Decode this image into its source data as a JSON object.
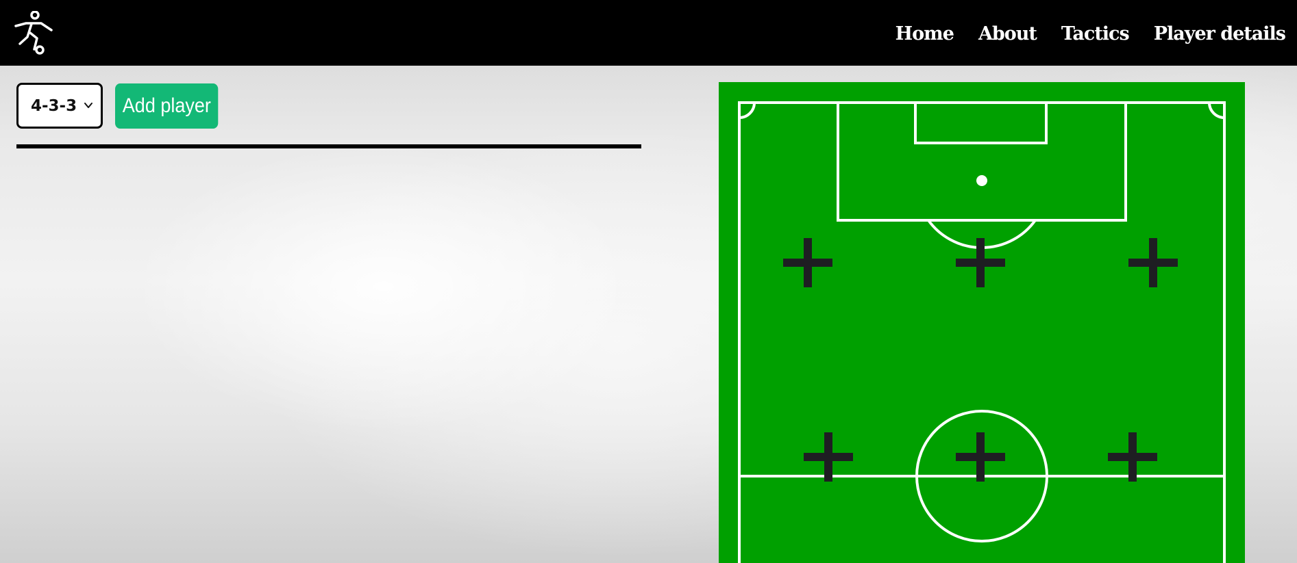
{
  "navbar": {
    "logo_icon": "football-player-kicking-icon",
    "links": [
      "Home",
      "About",
      "Tactics",
      "Player details"
    ]
  },
  "controls": {
    "formation_selected": "4-3-3",
    "add_player_label": "Add player"
  },
  "pitch": {
    "field_color": "#00a000",
    "line_color": "#ffffff",
    "position_marker_icon": "plus-icon",
    "marker_color": "#1e1e22"
  }
}
